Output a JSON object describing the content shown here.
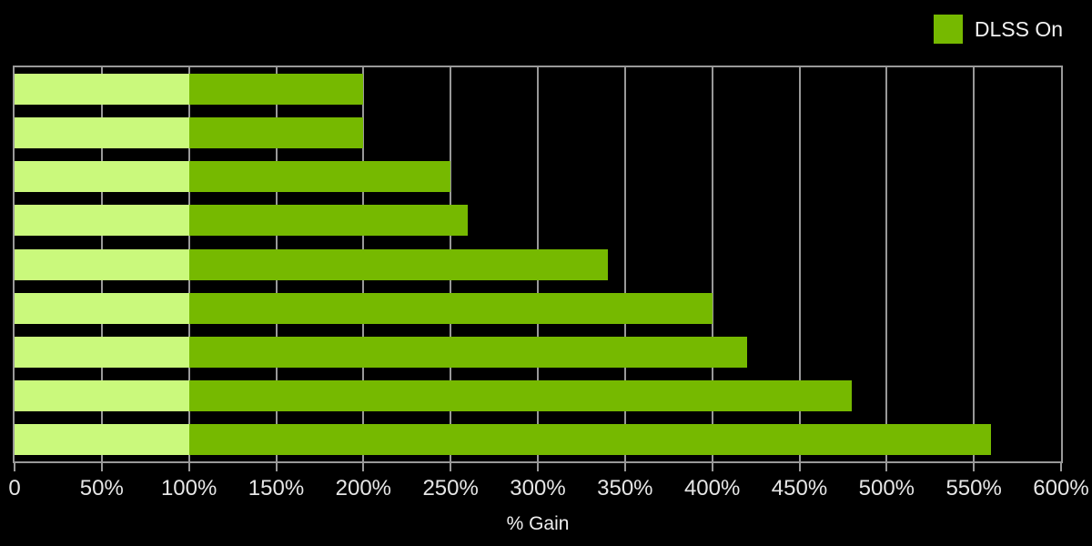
{
  "legend": {
    "label": "DLSS On",
    "swatch_color": "#76b900"
  },
  "chart_data": {
    "type": "bar",
    "orientation": "horizontal",
    "title": "",
    "xlabel": "% Gain",
    "ylabel": "",
    "xlim": [
      0,
      600
    ],
    "x_tick_labels": [
      "0",
      "50%",
      "100%",
      "150%",
      "200%",
      "250%",
      "300%",
      "350%",
      "400%",
      "450%",
      "500%",
      "550%",
      "600%"
    ],
    "grid": true,
    "legend_position": "top-right",
    "series": [
      {
        "name": "DLSS On",
        "values": [
          200,
          200,
          250,
          260,
          340,
          400,
          420,
          480,
          560
        ]
      }
    ],
    "segment_split": {
      "at": 100,
      "below_color": "#caf97c",
      "above_color": "#76b900"
    },
    "colors": {
      "background": "#000000",
      "gridline": "#999999",
      "frame": "#999999",
      "tick": "#999999",
      "tick_label": "#e6e6e6",
      "axis_label": "#f0f0f0",
      "legend_label": "#f2f2f2"
    }
  }
}
